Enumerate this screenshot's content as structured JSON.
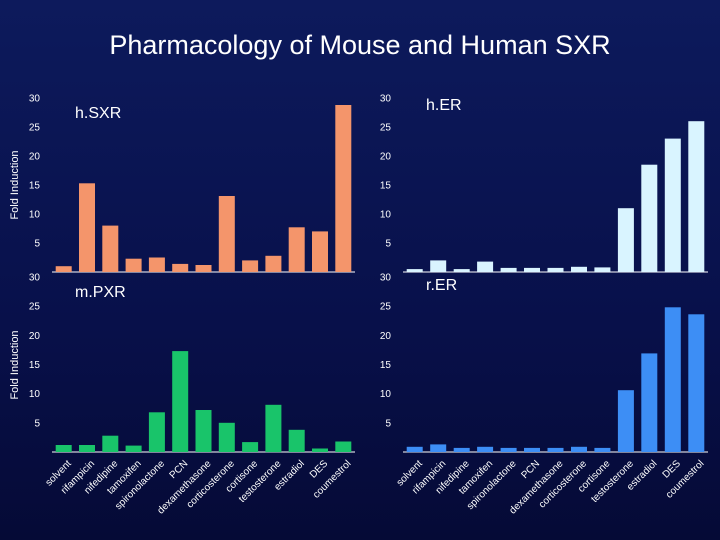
{
  "title": "Pharmacology of Mouse and Human SXR",
  "ylabel": "Fold Induction",
  "chart_data": {
    "type": "bar",
    "categories": [
      "solvent",
      "rifampicin",
      "nifedipine",
      "tamoxifen",
      "spironolactone",
      "PCN",
      "dexamethasone",
      "corticosterone",
      "cortisone",
      "testosterone",
      "estradiol",
      "DES",
      "coumestrol"
    ],
    "panels": [
      {
        "name": "h.SXR",
        "color": "#f4956b",
        "ylim": [
          0,
          30
        ],
        "yticks": [
          5,
          10,
          15,
          20,
          25,
          30
        ],
        "values": [
          1.0,
          15.3,
          8.0,
          2.3,
          2.5,
          1.4,
          1.2,
          13.1,
          2.0,
          2.8,
          7.7,
          7.0,
          28.8
        ]
      },
      {
        "name": "h.ER",
        "color": "#d9f4ff",
        "ylim": [
          0,
          30
        ],
        "yticks": [
          5,
          10,
          15,
          20,
          25,
          30
        ],
        "values": [
          0.5,
          2.0,
          0.5,
          1.8,
          0.7,
          0.7,
          0.7,
          0.9,
          0.8,
          11.0,
          18.5,
          23.0,
          26.0
        ]
      },
      {
        "name": "m.PXR",
        "color": "#19c46a",
        "ylim": [
          0,
          30
        ],
        "yticks": [
          5,
          10,
          15,
          20,
          25,
          30
        ],
        "values": [
          1.2,
          1.2,
          2.8,
          1.1,
          6.8,
          17.3,
          7.2,
          5.0,
          1.7,
          8.1,
          3.8,
          0.6,
          1.8
        ]
      },
      {
        "name": "r.ER",
        "color": "#3d8ef5",
        "ylim": [
          0,
          30
        ],
        "yticks": [
          5,
          10,
          15,
          20,
          25,
          30
        ],
        "values": [
          0.9,
          1.3,
          0.7,
          0.9,
          0.7,
          0.7,
          0.7,
          0.9,
          0.7,
          10.6,
          16.9,
          24.8,
          23.6
        ]
      }
    ]
  }
}
